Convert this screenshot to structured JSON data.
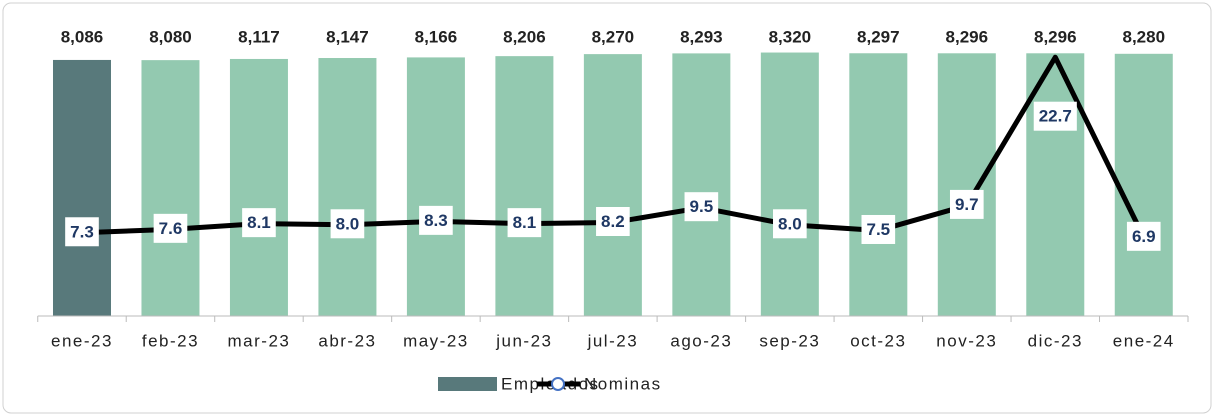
{
  "chart_data": {
    "type": "bar-line",
    "categories": [
      "ene-23",
      "feb-23",
      "mar-23",
      "abr-23",
      "may-23",
      "jun-23",
      "jul-23",
      "ago-23",
      "sep-23",
      "oct-23",
      "nov-23",
      "dic-23",
      "ene-24"
    ],
    "series": [
      {
        "name": "Empleados",
        "type": "bar",
        "color": "#93c9b0",
        "colors": [
          "#58797b",
          "#93c9b0",
          "#93c9b0",
          "#93c9b0",
          "#93c9b0",
          "#93c9b0",
          "#93c9b0",
          "#93c9b0",
          "#93c9b0",
          "#93c9b0",
          "#93c9b0",
          "#93c9b0",
          "#93c9b0"
        ],
        "values": [
          8086,
          8080,
          8117,
          8147,
          8166,
          8206,
          8270,
          8293,
          8320,
          8297,
          8296,
          8296,
          8280
        ],
        "value_labels": [
          "8,086",
          "8,080",
          "8,117",
          "8,147",
          "8,166",
          "8,206",
          "8,270",
          "8,293",
          "8,320",
          "8,297",
          "8,296",
          "8,296",
          "8,280"
        ]
      },
      {
        "name": "Nominas",
        "type": "line",
        "axis": "y2",
        "color": "#000000",
        "values": [
          7.3,
          7.6,
          8.1,
          8.0,
          8.3,
          8.1,
          8.2,
          9.5,
          8.0,
          7.5,
          9.7,
          22.7,
          6.9
        ],
        "value_labels": [
          "7.3",
          "7.6",
          "8.1",
          "8.0",
          "8.3",
          "8.1",
          "8.2",
          "9.5",
          "8.0",
          "7.5",
          "9.7",
          "22.7",
          "6.9"
        ]
      }
    ],
    "ylim": [
      0,
      9000
    ],
    "y2lim": [
      0,
      25
    ],
    "legend": "bottom"
  }
}
